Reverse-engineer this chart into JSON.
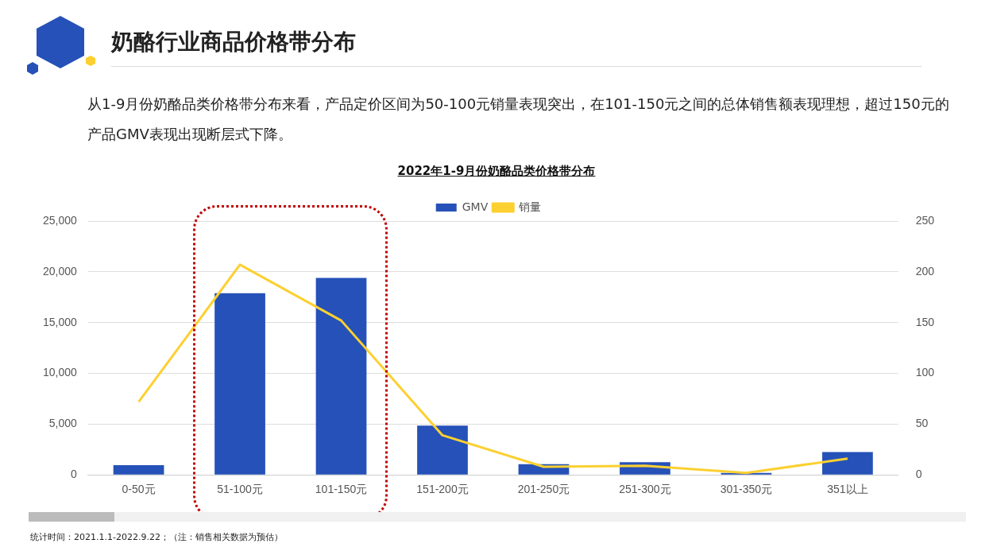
{
  "chart_data": {
    "type": "bar",
    "title": "奶酪行业商品价格带分布",
    "subtitle": "从1-9月份奶酪品类价格带分布来看，产品定价区间为50-100元销量表现突出，在101-150元之间的总体销售额表现理想，超过150元的产品GMV表现出现断层式下降。",
    "annotations": [
      "2022年1-9月份奶酪品类价格带分布",
      "统计时间：2021.1.1-2022.9.22；（注：销售相关数据为预估）"
    ],
    "categories": [
      "0-50元",
      "51-100元",
      "101-150元",
      "151-200元",
      "201-250元",
      "251-300元",
      "301-350元",
      "351以上"
    ],
    "series": [
      {
        "name": "GMV",
        "color": "#2551b8",
        "values": [
          950,
          17900,
          19400,
          4850,
          1050,
          1250,
          200,
          2250
        ]
      },
      {
        "name": "销量",
        "type": "line",
        "axis": "y2",
        "color": "#fcd031",
        "values": [
          72,
          207,
          152,
          39,
          8,
          9,
          2,
          16
        ]
      }
    ],
    "ylim": [
      0,
      25000
    ],
    "yticks": [
      {
        "value": 0,
        "label": "0"
      },
      {
        "value": 5000,
        "label": "5,000"
      },
      {
        "value": 10000,
        "label": "10,000"
      },
      {
        "value": 15000,
        "label": "15,000"
      },
      {
        "value": 20000,
        "label": "20,000"
      },
      {
        "value": 25000,
        "label": "25,000"
      }
    ],
    "y2lim": [
      0,
      250
    ],
    "y2ticks": [
      0,
      50,
      100,
      150,
      200,
      250
    ],
    "grid": "y",
    "legend": "top",
    "marker": "none"
  }
}
